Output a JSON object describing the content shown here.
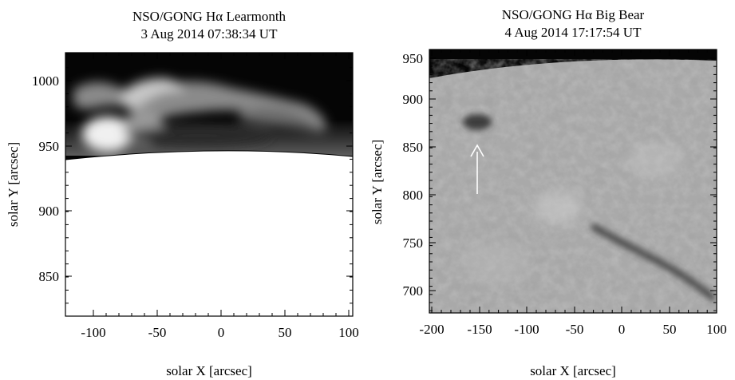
{
  "panels": [
    {
      "title_line1": "NSO/GONG Hα  Learmonth",
      "title_line2": "3 Aug 2014 07:38:34 UT",
      "xlabel": "solar X  [arcsec]",
      "ylabel": "solar Y  [arcsec]",
      "xticks": [
        "-100",
        "-50",
        "0",
        "50",
        "100"
      ],
      "yticks": [
        "1000",
        "950",
        "900",
        "850"
      ]
    },
    {
      "title_line1": "NSO/GONG Hα  Big Bear",
      "title_line2": "4 Aug 2014 17:17:54 UT",
      "xlabel": "solar X  [arcsec]",
      "ylabel": "solar Y  [arcsec]",
      "xticks": [
        "-200",
        "-150",
        "-100",
        "-50",
        "0",
        "50",
        "100"
      ],
      "yticks": [
        "950",
        "900",
        "850",
        "800",
        "750",
        "700"
      ]
    }
  ],
  "colors": {
    "sky": "#050505",
    "disk_left": "#ffffff",
    "disk_right": "#a9a9a9",
    "arrow": "#ffffff"
  }
}
